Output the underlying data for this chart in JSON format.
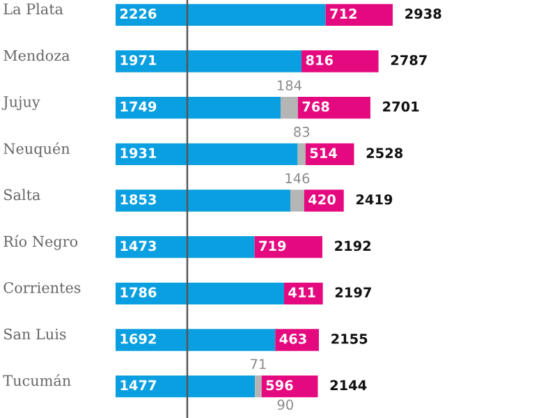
{
  "chart_data": {
    "type": "bar",
    "orientation": "horizontal",
    "stacked": true,
    "data_labels": true,
    "categories": [
      "La Plata",
      "Mendoza",
      "Jujuy",
      "Neuquén",
      "Salta",
      "Río Negro",
      "Corrientes",
      "San Luis",
      "Tucumán"
    ],
    "series": [
      {
        "color": "#0a9fe0",
        "values": [
          2226,
          1971,
          1749,
          1931,
          1853,
          1473,
          1786,
          1692,
          1477
        ]
      },
      {
        "color": "#b5b5b5",
        "values": [
          null,
          null,
          184,
          83,
          146,
          null,
          null,
          null,
          71
        ]
      },
      {
        "color": "#e5097f",
        "values": [
          712,
          816,
          768,
          514,
          420,
          719,
          411,
          463,
          596
        ]
      }
    ],
    "totals": [
      "2938",
      "2787",
      "2701",
      "2528",
      "2419",
      "2192",
      "2197",
      "2155",
      "2144"
    ],
    "ref_lines": [
      {
        "axis": "x",
        "value": 760,
        "color": "#555555"
      }
    ],
    "annotations": [
      "90"
    ]
  }
}
